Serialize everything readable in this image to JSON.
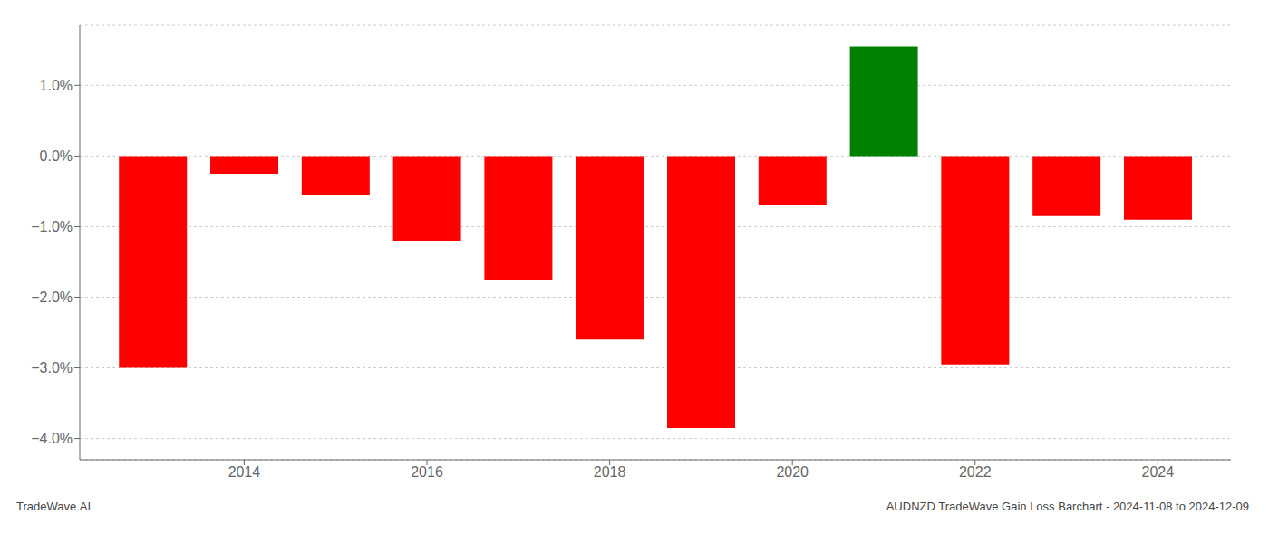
{
  "chart_data": {
    "type": "bar",
    "x": [
      2013,
      2014,
      2015,
      2016,
      2017,
      2018,
      2019,
      2020,
      2021,
      2022,
      2023,
      2024
    ],
    "values": [
      -3.0,
      -0.25,
      -0.55,
      -1.2,
      -1.75,
      -2.6,
      -3.85,
      -0.7,
      1.55,
      -2.95,
      -0.85,
      -0.9
    ],
    "colors": [
      "#ff0000",
      "#ff0000",
      "#ff0000",
      "#ff0000",
      "#ff0000",
      "#ff0000",
      "#ff0000",
      "#ff0000",
      "#008000",
      "#ff0000",
      "#ff0000",
      "#ff0000"
    ],
    "xlim": [
      2012.2,
      2024.8
    ],
    "xticks": [
      2014,
      2016,
      2018,
      2020,
      2022,
      2024
    ],
    "ylim": [
      -4.3,
      1.85
    ],
    "yticks": [
      {
        "value": -4.0,
        "label": "−4.0%"
      },
      {
        "value": -3.0,
        "label": "−3.0%"
      },
      {
        "value": -2.0,
        "label": "−2.0%"
      },
      {
        "value": -1.0,
        "label": "−1.0%"
      },
      {
        "value": 0.0,
        "label": "0.0%"
      },
      {
        "value": 1.0,
        "label": "1.0%"
      }
    ],
    "grid": true,
    "annotations": [
      "TradeWave.AI",
      "AUDNZD TradeWave Gain Loss Barchart - 2024-11-08 to 2024-12-09"
    ]
  }
}
